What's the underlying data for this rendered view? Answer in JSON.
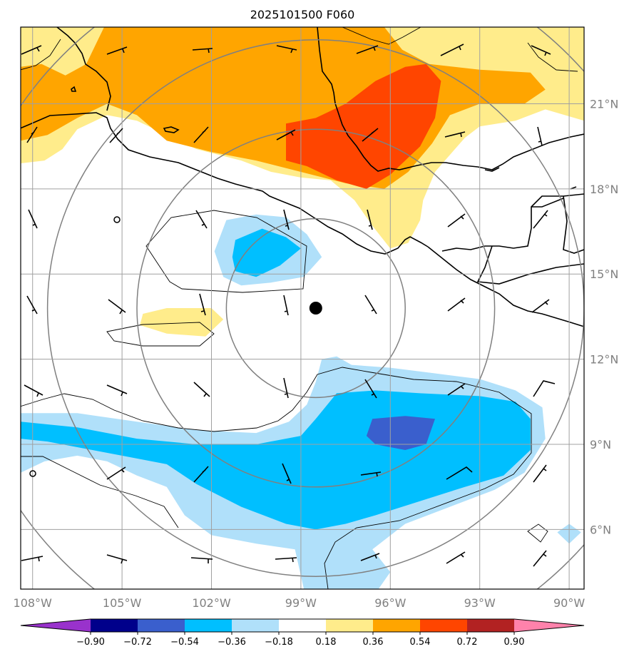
{
  "chart_data": {
    "type": "heatmap",
    "title": "2025101500 F060",
    "map_projection": "lat-lon",
    "xlim": [
      -108.4,
      -89.5
    ],
    "ylim": [
      3.9,
      23.7
    ],
    "x_ticks": [
      {
        "value": -108,
        "label": "108°W"
      },
      {
        "value": -105,
        "label": "105°W"
      },
      {
        "value": -102,
        "label": "102°W"
      },
      {
        "value": -99,
        "label": "99°W"
      },
      {
        "value": -96,
        "label": "96°W"
      },
      {
        "value": -93,
        "label": "93°W"
      },
      {
        "value": -90,
        "label": "90°W"
      }
    ],
    "y_ticks": [
      {
        "value": 6,
        "label": "6°N"
      },
      {
        "value": 9,
        "label": "9°N"
      },
      {
        "value": 12,
        "label": "12°N"
      },
      {
        "value": 15,
        "label": "15°N"
      },
      {
        "value": 18,
        "label": "18°N"
      },
      {
        "value": 21,
        "label": "21°N"
      }
    ],
    "grid": true,
    "center_marker": {
      "lon": -98.5,
      "lat": 13.8
    },
    "range_ring_radii_deg": [
      3,
      6,
      9,
      12
    ],
    "colorbar": {
      "levels": [
        -0.9,
        -0.72,
        -0.54,
        -0.36,
        -0.18,
        0.18,
        0.36,
        0.54,
        0.72,
        0.9
      ],
      "labels": [
        "−0.90",
        "−0.72",
        "−0.54",
        "−0.36",
        "−0.18",
        "0.18",
        "0.36",
        "0.54",
        "0.72",
        "0.90"
      ],
      "colors": [
        "#9932cc",
        "#00008b",
        "#3a5fcd",
        "#00bfff",
        "#b0e0fa",
        "#ffffff",
        "#ffec8b",
        "#ffa500",
        "#ff4500",
        "#b22222",
        "#ff82ab"
      ],
      "extend": "both"
    },
    "shaded_regions": [
      {
        "level": 0.36,
        "color": "#ffec8b",
        "polygon": [
          [
            -108.4,
            23.7
          ],
          [
            -89.5,
            23.7
          ],
          [
            -89.5,
            20.4
          ],
          [
            -90.8,
            20.8
          ],
          [
            -91.8,
            20.4
          ],
          [
            -93.0,
            20.2
          ],
          [
            -93.5,
            19.8
          ],
          [
            -94.5,
            18.6
          ],
          [
            -94.9,
            17.6
          ],
          [
            -95.0,
            16.9
          ],
          [
            -95.4,
            16.1
          ],
          [
            -96.0,
            15.9
          ],
          [
            -96.6,
            16.7
          ],
          [
            -97.2,
            17.6
          ],
          [
            -98.0,
            18.3
          ],
          [
            -99.0,
            18.4
          ],
          [
            -100.0,
            18.6
          ],
          [
            -101.0,
            19.0
          ],
          [
            -102.5,
            19.4
          ],
          [
            -103.5,
            19.9
          ],
          [
            -104.5,
            20.4
          ],
          [
            -105.5,
            20.6
          ],
          [
            -106.5,
            20.1
          ],
          [
            -107.0,
            19.4
          ],
          [
            -107.6,
            19.0
          ],
          [
            -108.4,
            18.9
          ]
        ]
      },
      {
        "level": 0.54,
        "color": "#ffa500",
        "polygon": [
          [
            -108.4,
            22.3
          ],
          [
            -107.7,
            22.4
          ],
          [
            -106.9,
            22.0
          ],
          [
            -106.2,
            22.4
          ],
          [
            -105.6,
            23.7
          ],
          [
            -96.2,
            23.7
          ],
          [
            -95.6,
            22.9
          ],
          [
            -94.7,
            22.4
          ],
          [
            -93.0,
            22.2
          ],
          [
            -91.3,
            22.1
          ],
          [
            -90.8,
            21.5
          ],
          [
            -91.5,
            21.0
          ],
          [
            -93.0,
            21.0
          ],
          [
            -94.0,
            20.6
          ],
          [
            -94.6,
            19.6
          ],
          [
            -95.4,
            18.6
          ],
          [
            -96.2,
            18.0
          ],
          [
            -97.5,
            18.2
          ],
          [
            -99.0,
            18.6
          ],
          [
            -100.5,
            19.0
          ],
          [
            -102.0,
            19.3
          ],
          [
            -103.5,
            19.7
          ],
          [
            -104.5,
            20.6
          ],
          [
            -105.5,
            21.0
          ],
          [
            -106.5,
            20.5
          ],
          [
            -107.5,
            19.9
          ],
          [
            -108.4,
            19.7
          ]
        ]
      },
      {
        "level": 0.72,
        "color": "#ff4500",
        "polygon": [
          [
            -99.5,
            20.3
          ],
          [
            -98.5,
            20.5
          ],
          [
            -97.5,
            21.0
          ],
          [
            -96.5,
            21.8
          ],
          [
            -95.5,
            22.3
          ],
          [
            -94.8,
            22.4
          ],
          [
            -94.3,
            21.8
          ],
          [
            -94.5,
            20.5
          ],
          [
            -95.0,
            19.5
          ],
          [
            -96.0,
            18.5
          ],
          [
            -96.8,
            18.0
          ],
          [
            -97.8,
            18.3
          ],
          [
            -98.8,
            18.8
          ],
          [
            -99.5,
            19.0
          ]
        ]
      },
      {
        "level": 0.36,
        "color": "#ffec8b",
        "polygon": [
          [
            -104.3,
            13.6
          ],
          [
            -103.5,
            13.8
          ],
          [
            -102.0,
            13.8
          ],
          [
            -101.6,
            13.4
          ],
          [
            -102.2,
            12.8
          ],
          [
            -103.5,
            12.9
          ],
          [
            -104.4,
            13.2
          ]
        ]
      },
      {
        "level": -0.18,
        "color": "#b0e0fa",
        "polygon": [
          [
            -101.5,
            16.9
          ],
          [
            -100.5,
            17.1
          ],
          [
            -99.5,
            17.0
          ],
          [
            -98.8,
            16.4
          ],
          [
            -98.3,
            15.6
          ],
          [
            -98.9,
            14.9
          ],
          [
            -100.0,
            14.7
          ],
          [
            -101.0,
            14.6
          ],
          [
            -101.6,
            14.9
          ],
          [
            -101.9,
            15.8
          ]
        ]
      },
      {
        "level": -0.36,
        "color": "#00bfff",
        "polygon": [
          [
            -101.2,
            16.2
          ],
          [
            -100.3,
            16.6
          ],
          [
            -99.5,
            16.3
          ],
          [
            -99.0,
            15.9
          ],
          [
            -99.7,
            15.3
          ],
          [
            -100.5,
            14.9
          ],
          [
            -101.2,
            15.1
          ],
          [
            -101.3,
            15.6
          ]
        ]
      },
      {
        "level": -0.18,
        "color": "#b0e0fa",
        "polygon": [
          [
            -108.4,
            10.1
          ],
          [
            -106.5,
            10.1
          ],
          [
            -104.5,
            9.8
          ],
          [
            -102.5,
            9.5
          ],
          [
            -100.5,
            9.4
          ],
          [
            -99.4,
            9.8
          ],
          [
            -98.8,
            10.4
          ],
          [
            -98.5,
            11.2
          ],
          [
            -98.3,
            12.0
          ],
          [
            -97.8,
            12.1
          ],
          [
            -97.3,
            11.8
          ],
          [
            -96.0,
            11.7
          ],
          [
            -94.5,
            11.5
          ],
          [
            -93.0,
            11.3
          ],
          [
            -91.8,
            10.9
          ],
          [
            -90.9,
            10.3
          ],
          [
            -90.8,
            9.2
          ],
          [
            -91.5,
            8.0
          ],
          [
            -92.5,
            7.4
          ],
          [
            -94.0,
            6.8
          ],
          [
            -95.5,
            6.2
          ],
          [
            -96.6,
            5.3
          ],
          [
            -96.0,
            4.5
          ],
          [
            -96.4,
            3.9
          ],
          [
            -98.9,
            3.9
          ],
          [
            -99.2,
            5.3
          ],
          [
            -100.5,
            5.5
          ],
          [
            -102.0,
            5.8
          ],
          [
            -102.9,
            6.5
          ],
          [
            -103.5,
            7.5
          ],
          [
            -104.5,
            7.9
          ],
          [
            -105.5,
            8.4
          ],
          [
            -106.5,
            8.6
          ],
          [
            -107.6,
            8.4
          ],
          [
            -108.4,
            8.0
          ]
        ]
      },
      {
        "level": -0.36,
        "color": "#00bfff",
        "polygon": [
          [
            -108.4,
            9.8
          ],
          [
            -106.5,
            9.6
          ],
          [
            -104.5,
            9.2
          ],
          [
            -102.5,
            9.0
          ],
          [
            -100.5,
            9.0
          ],
          [
            -99.0,
            9.3
          ],
          [
            -98.5,
            9.9
          ],
          [
            -97.8,
            10.8
          ],
          [
            -96.5,
            10.9
          ],
          [
            -95.0,
            10.8
          ],
          [
            -93.0,
            10.7
          ],
          [
            -91.8,
            10.5
          ],
          [
            -91.3,
            9.9
          ],
          [
            -91.3,
            8.8
          ],
          [
            -92.2,
            7.9
          ],
          [
            -93.5,
            7.5
          ],
          [
            -95.0,
            7.0
          ],
          [
            -96.5,
            6.5
          ],
          [
            -97.5,
            6.2
          ],
          [
            -98.5,
            6.0
          ],
          [
            -99.5,
            6.2
          ],
          [
            -101.0,
            6.8
          ],
          [
            -102.5,
            7.6
          ],
          [
            -103.5,
            8.3
          ],
          [
            -105.0,
            8.6
          ],
          [
            -106.5,
            8.9
          ],
          [
            -107.5,
            9.1
          ],
          [
            -108.4,
            9.2
          ]
        ]
      },
      {
        "level": -0.54,
        "color": "#3a5fcd",
        "polygon": [
          [
            -96.6,
            9.9
          ],
          [
            -95.5,
            10.0
          ],
          [
            -94.5,
            9.9
          ],
          [
            -94.8,
            9.0
          ],
          [
            -95.5,
            8.8
          ],
          [
            -96.5,
            9.0
          ],
          [
            -96.8,
            9.3
          ]
        ]
      },
      {
        "level": -0.18,
        "color": "#b0e0fa",
        "polygon": [
          [
            -90.4,
            5.9
          ],
          [
            -90.0,
            6.2
          ],
          [
            -89.6,
            5.9
          ],
          [
            -90.0,
            5.5
          ]
        ]
      }
    ]
  }
}
